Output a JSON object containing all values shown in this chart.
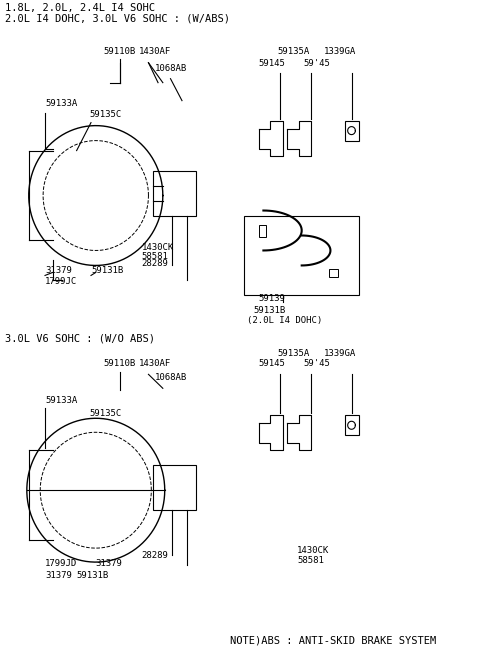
{
  "title": "",
  "bg_color": "#ffffff",
  "line_color": "#000000",
  "text_color": "#000000",
  "section1_header": "1.8L, 2.0L, 2.4L I4 SOHC",
  "section1_header2": "2.0L I4 DOHC, 3.0L V6 SOHC : (W/ABS)",
  "section2_header": "3.0L V6 SOHC : (W/O ABS)",
  "note_text": "NOTE)ABS : ANTI-SKID BRAKE SYSTEM",
  "font_family": "monospace",
  "header_fontsize": 7.5,
  "label_fontsize": 6.5,
  "section_header_fontsize": 8.0
}
